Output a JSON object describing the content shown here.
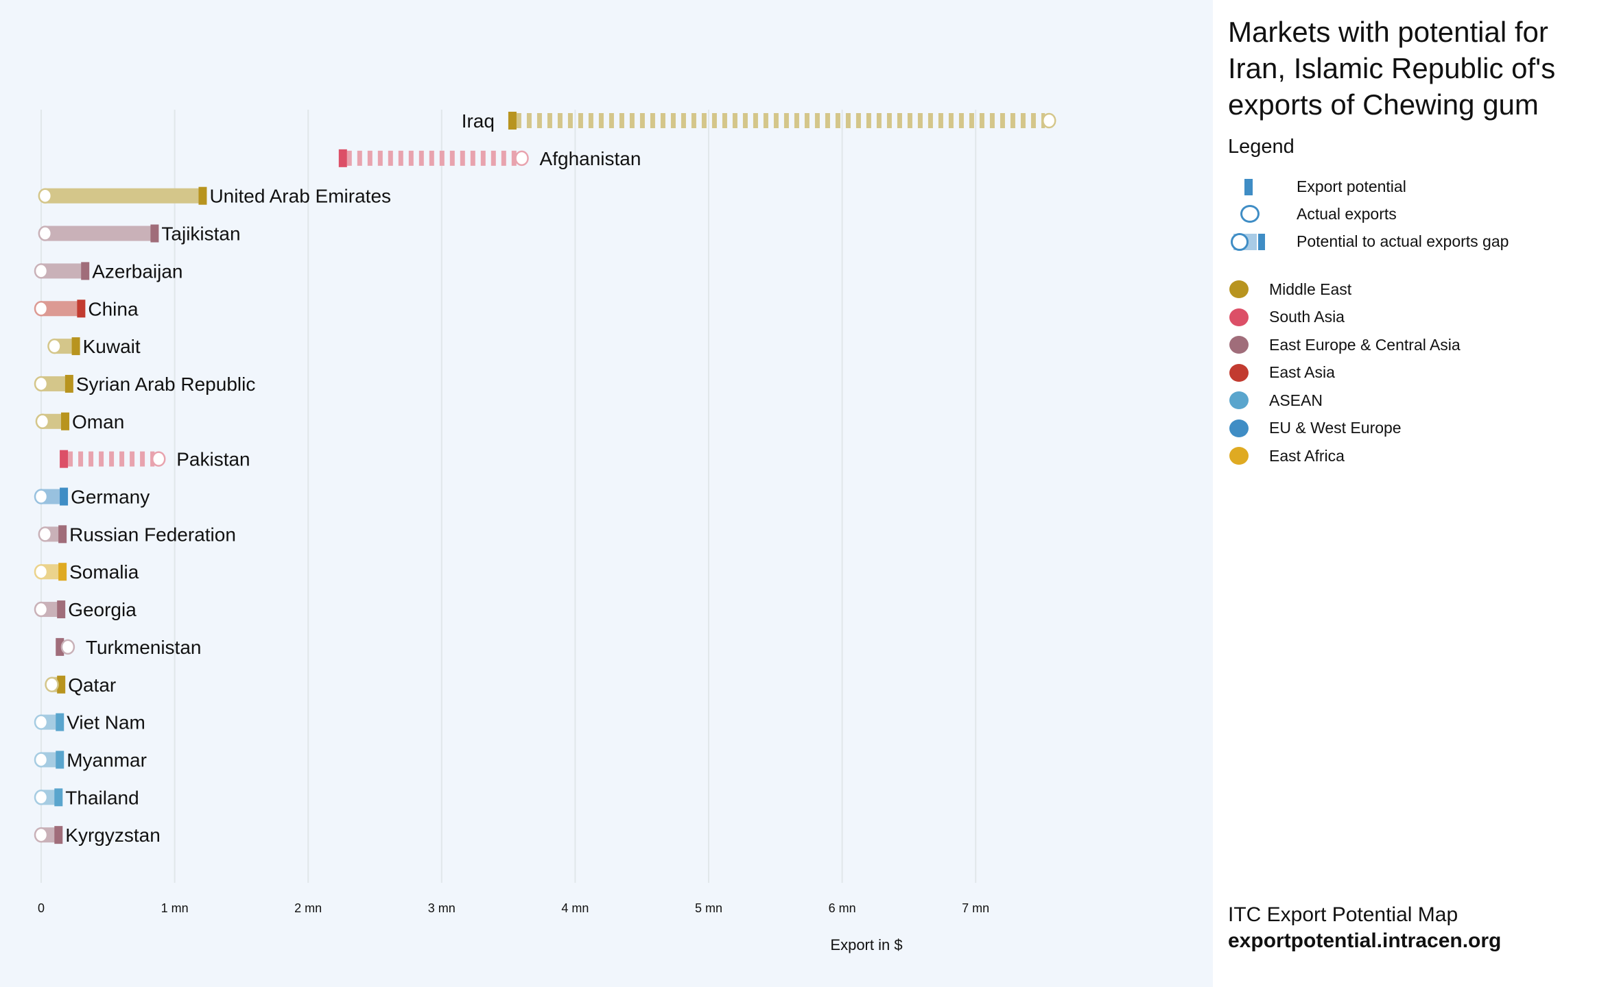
{
  "title": "Markets with potential for Iran, Islamic Republic of's exports of Chewing gum",
  "legend": {
    "heading": "Legend",
    "symbols": [
      {
        "label": "Export potential"
      },
      {
        "label": "Actual exports"
      },
      {
        "label": "Potential to actual exports gap"
      }
    ],
    "regions": [
      {
        "name": "Middle East",
        "color": "#b8941f",
        "light": "#d4c68a"
      },
      {
        "name": "South Asia",
        "color": "#dc4f67",
        "light": "#e8a3ae"
      },
      {
        "name": "East Europe & Central Asia",
        "color": "#a06d7a",
        "light": "#c9b1b8"
      },
      {
        "name": "East Asia",
        "color": "#c23b30",
        "light": "#dc9a93"
      },
      {
        "name": "ASEAN",
        "color": "#5aa5cd",
        "light": "#a6cce2"
      },
      {
        "name": "EU & West Europe",
        "color": "#3f8dc5",
        "light": "#98c1df"
      },
      {
        "name": "East Africa",
        "color": "#dfaa22",
        "light": "#ebd38c"
      }
    ],
    "symbol_color": "#3f8dc5",
    "symbol_light": "#a8cbe6"
  },
  "footer": {
    "line1": "ITC Export Potential Map",
    "line2": "exportpotential.intracen.org"
  },
  "chart_data": {
    "type": "dumbbell",
    "xlabel": "Export in $",
    "xlim": [
      0,
      7.8
    ],
    "x_unit": "mn USD",
    "grid": true,
    "ticks": [
      {
        "value": 0,
        "label": "0"
      },
      {
        "value": 1,
        "label": "1 mn"
      },
      {
        "value": 2,
        "label": "2 mn"
      },
      {
        "value": 3,
        "label": "3 mn"
      },
      {
        "value": 4,
        "label": "4 mn"
      },
      {
        "value": 5,
        "label": "5 mn"
      },
      {
        "value": 6,
        "label": "6 mn"
      },
      {
        "value": 7,
        "label": "7 mn"
      }
    ],
    "series_names": [
      "Export potential",
      "Actual exports"
    ],
    "rows": [
      {
        "country": "Iraq",
        "region": "Middle East",
        "potential": 3.53,
        "actual": 7.55
      },
      {
        "country": "Afghanistan",
        "region": "South Asia",
        "potential": 2.26,
        "actual": 3.6
      },
      {
        "country": "United Arab Emirates",
        "region": "Middle East",
        "potential": 1.21,
        "actual": 0.03
      },
      {
        "country": "Tajikistan",
        "region": "East Europe & Central Asia",
        "potential": 0.85,
        "actual": 0.03
      },
      {
        "country": "Azerbaijan",
        "region": "East Europe & Central Asia",
        "potential": 0.33,
        "actual": 0.0
      },
      {
        "country": "China",
        "region": "East Asia",
        "potential": 0.3,
        "actual": 0.0
      },
      {
        "country": "Kuwait",
        "region": "Middle East",
        "potential": 0.26,
        "actual": 0.1
      },
      {
        "country": "Syrian Arab Republic",
        "region": "Middle East",
        "potential": 0.21,
        "actual": 0.0
      },
      {
        "country": "Oman",
        "region": "Middle East",
        "potential": 0.18,
        "actual": 0.01
      },
      {
        "country": "Pakistan",
        "region": "South Asia",
        "potential": 0.17,
        "actual": 0.88
      },
      {
        "country": "Germany",
        "region": "EU & West Europe",
        "potential": 0.17,
        "actual": 0.0
      },
      {
        "country": "Russian Federation",
        "region": "East Europe & Central Asia",
        "potential": 0.16,
        "actual": 0.03
      },
      {
        "country": "Somalia",
        "region": "East Africa",
        "potential": 0.16,
        "actual": 0.0
      },
      {
        "country": "Georgia",
        "region": "East Europe & Central Asia",
        "potential": 0.15,
        "actual": 0.0
      },
      {
        "country": "Turkmenistan",
        "region": "East Europe & Central Asia",
        "potential": 0.14,
        "actual": 0.2
      },
      {
        "country": "Qatar",
        "region": "Middle East",
        "potential": 0.15,
        "actual": 0.08
      },
      {
        "country": "Viet Nam",
        "region": "ASEAN",
        "potential": 0.14,
        "actual": 0.0
      },
      {
        "country": "Myanmar",
        "region": "ASEAN",
        "potential": 0.14,
        "actual": 0.0
      },
      {
        "country": "Thailand",
        "region": "ASEAN",
        "potential": 0.13,
        "actual": 0.0
      },
      {
        "country": "Kyrgyzstan",
        "region": "East Europe & Central Asia",
        "potential": 0.13,
        "actual": 0.0
      }
    ]
  }
}
